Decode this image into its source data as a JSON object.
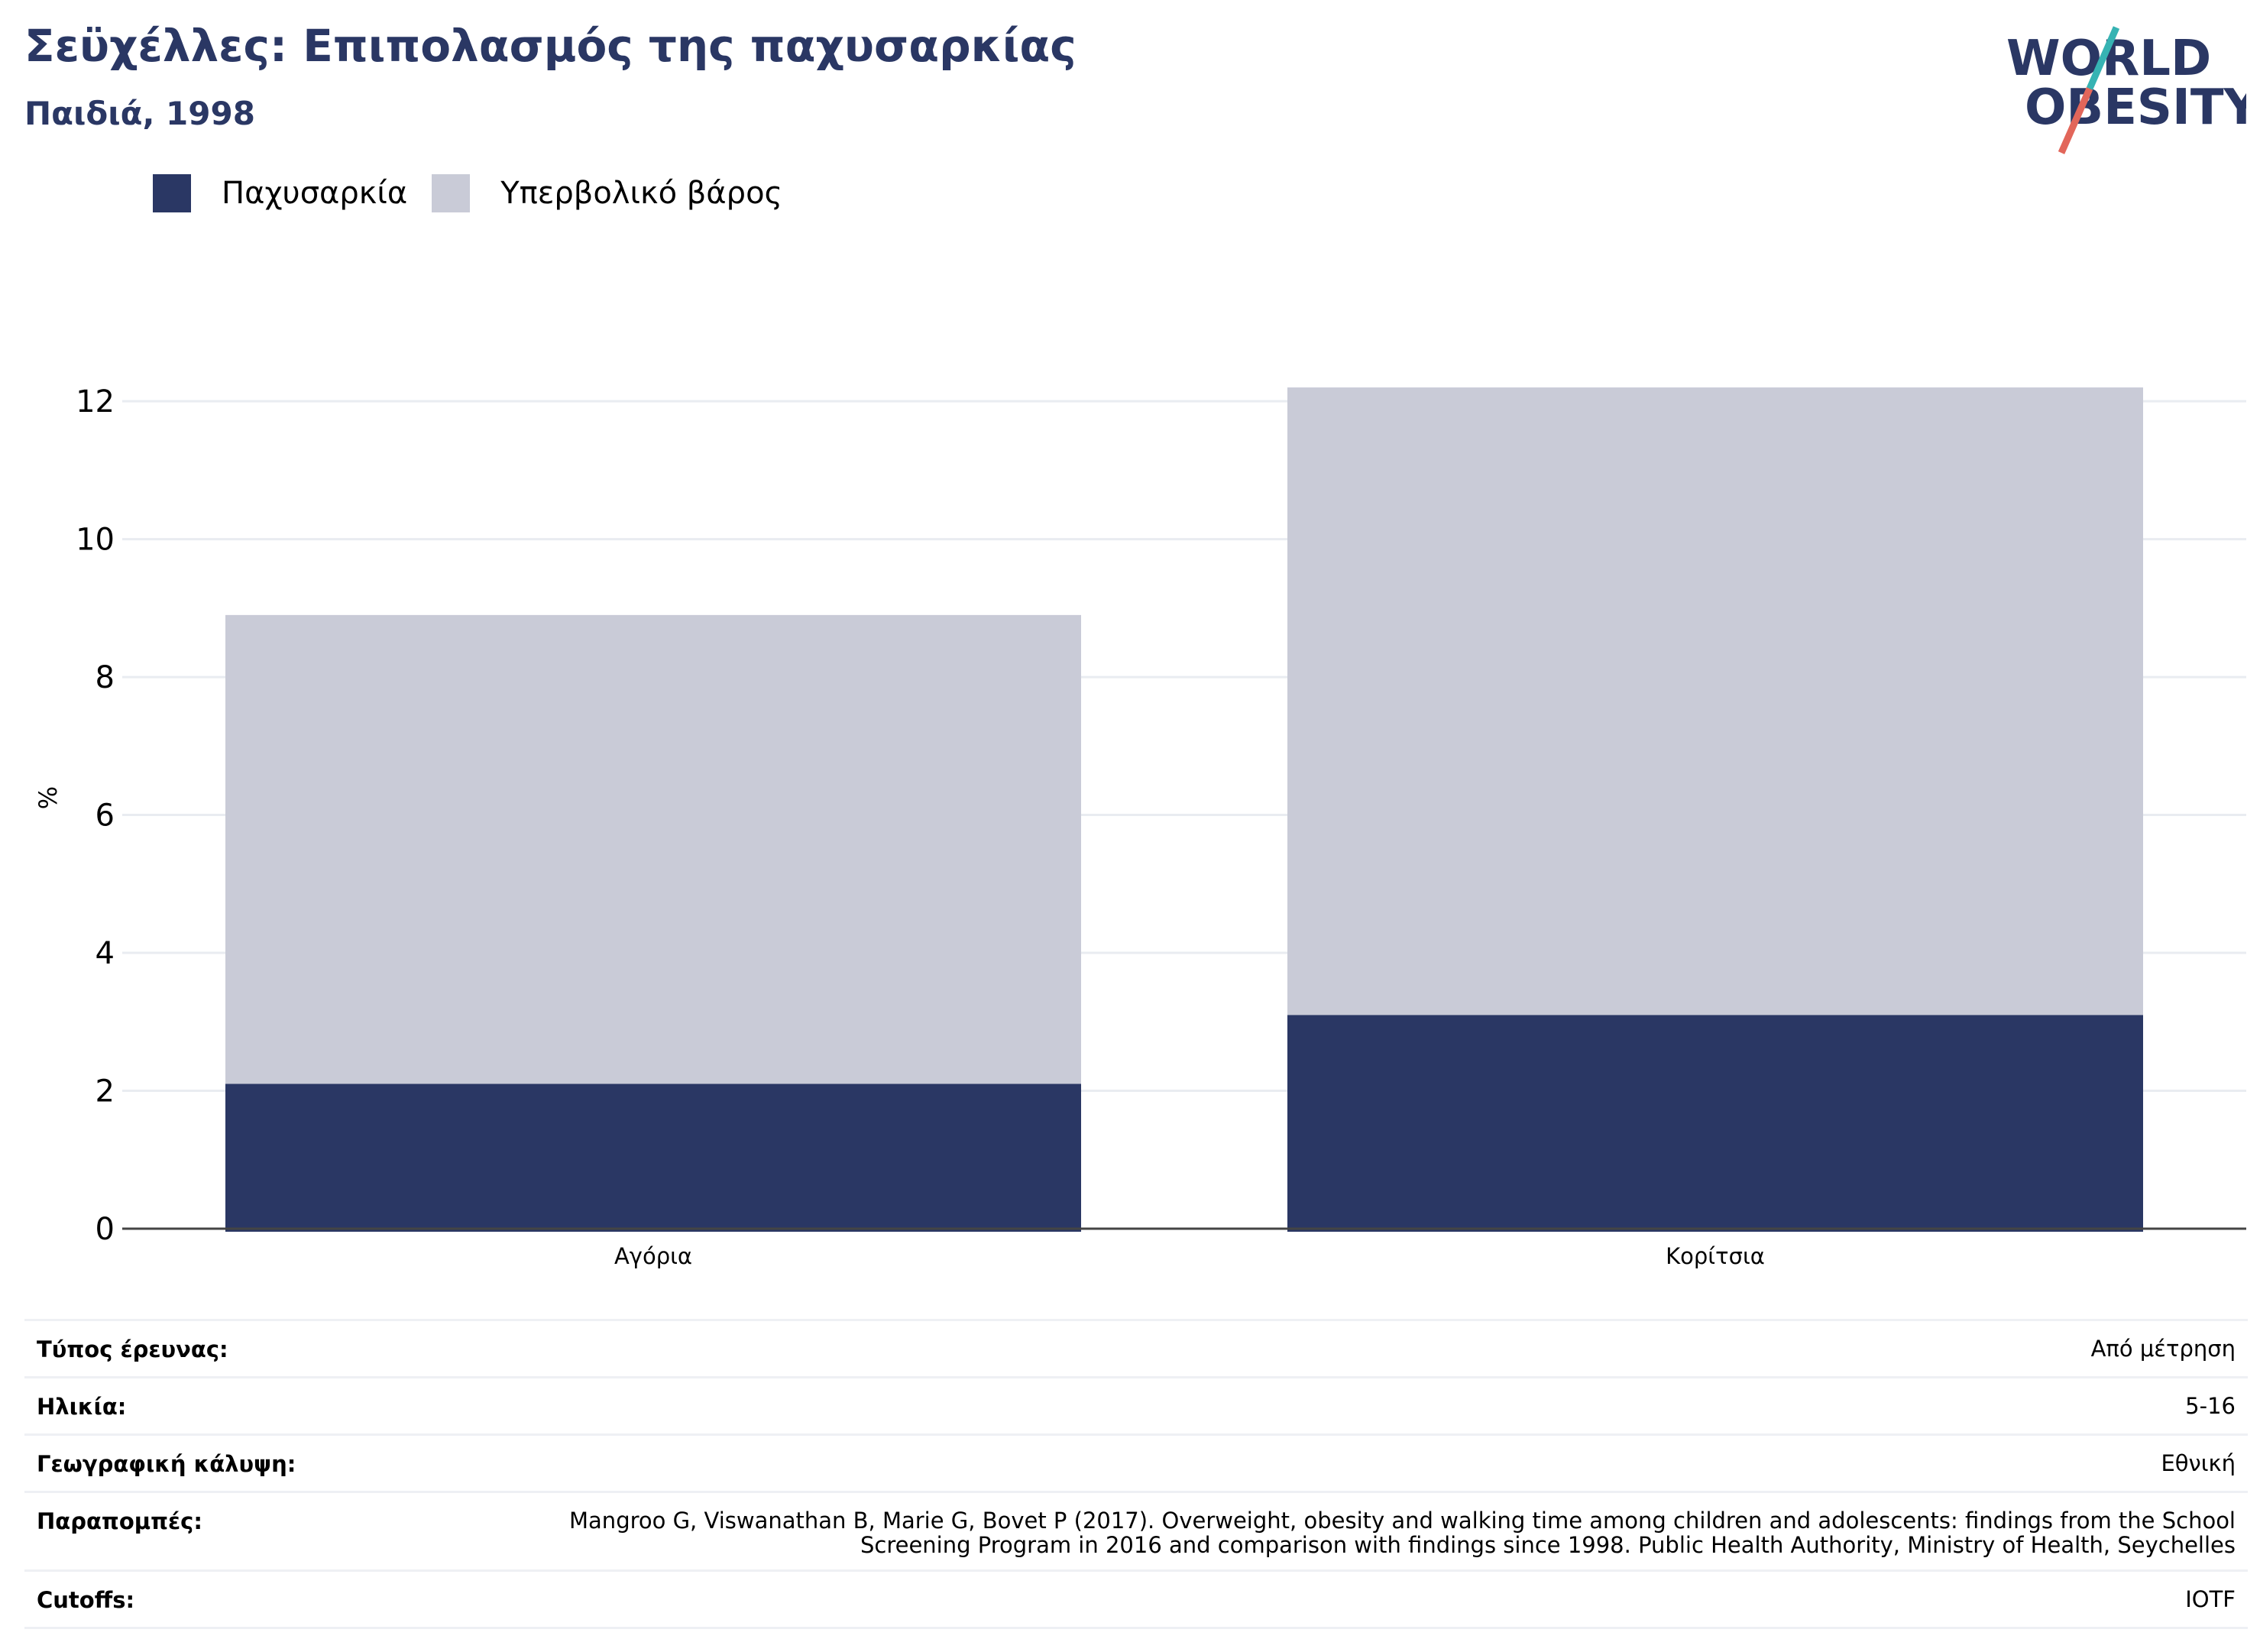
{
  "header": {
    "title": "Σεϋχέλλες: Επιπολασμός της παχυσαρκίας",
    "subtitle": "Παιδιά, 1998"
  },
  "logo": {
    "line1": "WORLD",
    "line2": "OBESITY",
    "colors": {
      "text": "#2a3764",
      "slash_top": "#36b3b3",
      "slash_bottom": "#e2665a"
    }
  },
  "legend": [
    {
      "label": "Παχυσαρκία",
      "color": "#2a3764"
    },
    {
      "label": "Υπερβολικό βάρος",
      "color": "#c9cbd7"
    }
  ],
  "chart_data": {
    "type": "bar",
    "stacked": true,
    "categories": [
      "Αγόρια",
      "Κορίτσια"
    ],
    "series": [
      {
        "name": "Παχυσαρκία",
        "values": [
          2.1,
          3.1
        ],
        "color": "#2a3764"
      },
      {
        "name": "Υπερβολικό βάρος",
        "values": [
          6.8,
          9.1
        ],
        "color": "#c9cbd7"
      }
    ],
    "ylabel": "%",
    "ylim": [
      0,
      12.5
    ],
    "yticks": [
      0,
      2,
      4,
      6,
      8,
      10,
      12
    ],
    "grid": true,
    "legend_position": "top-left"
  },
  "meta": [
    {
      "key": "Τύπος έρευνας:",
      "value": "Από μέτρηση"
    },
    {
      "key": "Ηλικία:",
      "value": "5-16"
    },
    {
      "key": "Γεωγραφική κάλυψη:",
      "value": "Εθνική"
    },
    {
      "key": "Παραπομπές:",
      "value": "Mangroo G, Viswanathan B, Marie G, Bovet P (2017). Overweight, obesity and walking time among children and adolescents: findings from the School Screening Program in 2016 and comparison with findings since 1998. Public Health Authority, Ministry of Health, Seychelles"
    },
    {
      "key": "Cutoffs:",
      "value": "IOTF"
    }
  ]
}
